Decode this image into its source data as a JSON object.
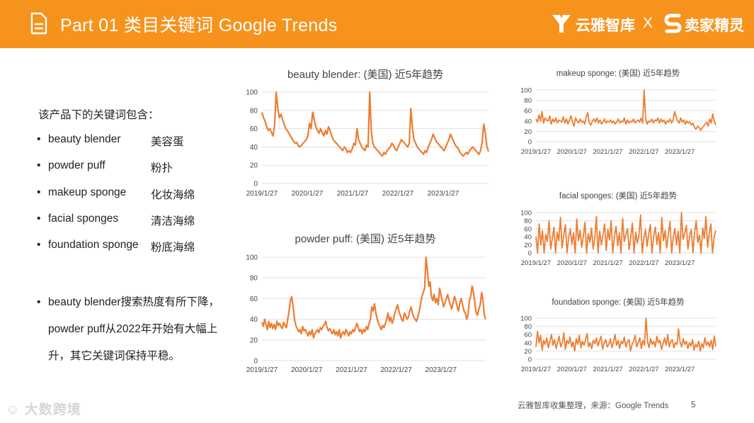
{
  "header": {
    "title": "Part 01 类目关键词 Google Trends",
    "brand1": "云雅智库",
    "separator": "X",
    "brand2": "卖家精灵",
    "color": "#f6931d"
  },
  "intro": "该产品下的关键词包含：",
  "keywords": [
    {
      "en": "beauty blender",
      "zh": "美容蛋"
    },
    {
      "en": "powder puff",
      "zh": "粉扑"
    },
    {
      "en": "makeup sponge",
      "zh": "化妆海绵"
    },
    {
      "en": "facial sponges",
      "zh": "清洁海绵"
    },
    {
      "en": "foundation sponge",
      "zh": "粉底海绵"
    }
  ],
  "note": "beauty blender搜索热度有所下降，powder puff从2022年开始有大幅上升，其它关键词保持平稳。",
  "bullet": "•",
  "footer": {
    "source": "云雅智库收集整理，来源：Google Trends",
    "page": "5"
  },
  "watermark": "大数跨境",
  "line_color": "#ed7d31",
  "chart_data": [
    {
      "type": "line",
      "title": "beauty blender: (美国) 近5年趋势",
      "ylim": [
        0,
        100
      ],
      "yticks": [
        "0",
        "20",
        "40",
        "60",
        "80",
        "100"
      ],
      "xticks": [
        "2019/1/27",
        "2020/1/27",
        "2021/1/27",
        "2022/1/27",
        "2023/1/27"
      ],
      "x_range": [
        "2019/1/27",
        "2024/1/21"
      ],
      "grid": true,
      "values": [
        78,
        72,
        68,
        62,
        58,
        60,
        56,
        52,
        64,
        100,
        82,
        72,
        76,
        70,
        65,
        60,
        58,
        55,
        52,
        49,
        46,
        44,
        45,
        41,
        40,
        42,
        44,
        46,
        48,
        52,
        66,
        60,
        78,
        70,
        62,
        58,
        55,
        60,
        56,
        52,
        58,
        54,
        62,
        58,
        52,
        48,
        46,
        44,
        42,
        40,
        38,
        36,
        40,
        38,
        34,
        36,
        34,
        38,
        44,
        42,
        60,
        48,
        44,
        40,
        38,
        36,
        42,
        40,
        100,
        58,
        44,
        40,
        38,
        36,
        34,
        32,
        30,
        34,
        32,
        36,
        38,
        40,
        44,
        42,
        38,
        36,
        40,
        44,
        48,
        46,
        44,
        42,
        40,
        44,
        82,
        60,
        48,
        44,
        40,
        38,
        36,
        34,
        32,
        36,
        34,
        40,
        44,
        48,
        54,
        50,
        46,
        44,
        42,
        40,
        38,
        36,
        40,
        44,
        48,
        54,
        50,
        46,
        42,
        40,
        38,
        34,
        32,
        30,
        32,
        34,
        32,
        36,
        38,
        40,
        38,
        36,
        34,
        32,
        36,
        45,
        65,
        55,
        40,
        35
      ]
    },
    {
      "type": "line",
      "title": "powder puff: (美国) 近5年趋势",
      "ylim": [
        0,
        100
      ],
      "yticks": [
        "0",
        "20",
        "40",
        "60",
        "80",
        "100"
      ],
      "xticks": [
        "2019/1/27",
        "2020/1/27",
        "2021/1/27",
        "2022/1/27",
        "2023/1/27"
      ],
      "x_range": [
        "2019/1/27",
        "2024/1/21"
      ],
      "grid": true,
      "values": [
        37,
        33,
        40,
        35,
        30,
        38,
        32,
        36,
        31,
        35,
        30,
        38,
        34,
        36,
        33,
        31,
        37,
        34,
        32,
        40,
        48,
        58,
        62,
        52,
        40,
        34,
        31,
        28,
        30,
        26,
        33,
        29,
        30,
        27,
        24,
        28,
        25,
        30,
        22,
        26,
        28,
        30,
        27,
        32,
        30,
        33,
        35,
        38,
        32,
        29,
        31,
        28,
        26,
        30,
        25,
        28,
        24,
        30,
        22,
        26,
        28,
        25,
        30,
        27,
        24,
        28,
        26,
        30,
        28,
        32,
        36,
        32,
        28,
        30,
        26,
        30,
        28,
        33,
        30,
        36,
        40,
        52,
        48,
        55,
        46,
        40,
        36,
        33,
        30,
        34,
        32,
        36,
        40,
        46,
        38,
        42,
        36,
        40,
        46,
        50,
        54,
        48,
        44,
        40,
        38,
        46,
        44,
        40,
        42,
        48,
        52,
        46,
        42,
        40,
        38,
        42,
        48,
        55,
        62,
        66,
        70,
        100,
        88,
        72,
        76,
        62,
        58,
        64,
        56,
        60,
        54,
        70,
        64,
        58,
        52,
        56,
        60,
        64,
        58,
        54,
        50,
        56,
        62,
        58,
        52,
        48,
        56,
        60,
        54,
        48,
        46,
        40,
        44,
        58,
        62,
        72,
        66,
        56,
        46,
        44,
        50,
        54,
        66,
        58,
        44,
        40
      ]
    },
    {
      "type": "line",
      "title": "makeup sponge: (美国) 近5年趋势",
      "ylim": [
        0,
        100
      ],
      "yticks": [
        "0",
        "20",
        "40",
        "60",
        "80",
        "100"
      ],
      "xticks": [
        "2019/1/27",
        "2020/1/27",
        "2021/1/27",
        "2022/1/27",
        "2023/1/27"
      ],
      "x_range": [
        "2019/1/27",
        "2024/1/21"
      ],
      "grid": true,
      "values": [
        44,
        38,
        52,
        40,
        58,
        36,
        46,
        42,
        40,
        50,
        34,
        44,
        38,
        46,
        36,
        42,
        40,
        38,
        48,
        36,
        44,
        34,
        42,
        50,
        38,
        30,
        46,
        40,
        36,
        44,
        38,
        40,
        34,
        48,
        56,
        36,
        32,
        40,
        44,
        38,
        46,
        36,
        42,
        34,
        38,
        44,
        36,
        40,
        38,
        42,
        36,
        40,
        34,
        38,
        44,
        36,
        40,
        38,
        46,
        34,
        42,
        36,
        40,
        38,
        44,
        36,
        40,
        42,
        38,
        46,
        36,
        100,
        44,
        34,
        40,
        38,
        44,
        36,
        42,
        40,
        46,
        36,
        44,
        38,
        42,
        34,
        40,
        38,
        44,
        36,
        42,
        58,
        48,
        40,
        36,
        46,
        38,
        42,
        34,
        40,
        36,
        38,
        32,
        36,
        28,
        24,
        30,
        28,
        22,
        26,
        30,
        34,
        38,
        30,
        44,
        36,
        54,
        40,
        32
      ]
    },
    {
      "type": "line",
      "title": "facial sponges: (美国) 近5年趋势",
      "ylim": [
        0,
        100
      ],
      "yticks": [
        "0",
        "20",
        "40",
        "60",
        "80",
        "100"
      ],
      "xticks": [
        "2019/1/27",
        "2020/1/27",
        "2021/1/27",
        "2022/1/27",
        "2023/1/27"
      ],
      "x_range": [
        "2019/1/27",
        "2024/1/21"
      ],
      "grid": true,
      "values": [
        40,
        0,
        72,
        20,
        55,
        0,
        46,
        28,
        80,
        10,
        36,
        64,
        0,
        52,
        30,
        88,
        12,
        44,
        70,
        0,
        38,
        60,
        22,
        50,
        0,
        84,
        30,
        56,
        14,
        42,
        76,
        0,
        48,
        26,
        62,
        10,
        36,
        90,
        0,
        54,
        20,
        44,
        72,
        6,
        58,
        32,
        80,
        0,
        40,
        66,
        18,
        50,
        0,
        86,
        28,
        46,
        60,
        8,
        38,
        74,
        0,
        52,
        24,
        44,
        94,
        0,
        36,
        58,
        16,
        48,
        70,
        0,
        42,
        64,
        22,
        50,
        0,
        88,
        30,
        56,
        12,
        46,
        78,
        0,
        40,
        60,
        20,
        54,
        0,
        100,
        34,
        48,
        68,
        10,
        42,
        58,
        0,
        50,
        80,
        26,
        44,
        0,
        62,
        36,
        90,
        14,
        48,
        72,
        0,
        40,
        56
      ]
    },
    {
      "type": "line",
      "title": "foundation sponge: (美国) 近5年趋势",
      "ylim": [
        0,
        100
      ],
      "yticks": [
        "0",
        "20",
        "40",
        "60",
        "80",
        "100"
      ],
      "xticks": [
        "2019/1/27",
        "2020/1/27",
        "2021/1/27",
        "2022/1/27",
        "2023/1/27"
      ],
      "x_range": [
        "2019/1/27",
        "2024/1/21"
      ],
      "grid": true,
      "values": [
        30,
        68,
        40,
        58,
        22,
        46,
        36,
        52,
        28,
        44,
        60,
        34,
        48,
        26,
        42,
        56,
        30,
        40,
        64,
        24,
        46,
        38,
        54,
        30,
        42,
        20,
        50,
        36,
        58,
        28,
        44,
        34,
        48,
        62,
        30,
        40,
        26,
        46,
        38,
        52,
        32,
        44,
        56,
        24,
        40,
        48,
        30,
        36,
        50,
        28,
        42,
        60,
        34,
        46,
        26,
        44,
        38,
        54,
        30,
        42,
        48,
        20,
        36,
        44,
        58,
        30,
        40,
        52,
        26,
        46,
        34,
        100,
        42,
        28,
        50,
        36,
        44,
        30,
        56,
        40,
        46,
        24,
        38,
        52,
        34,
        60,
        30,
        44,
        48,
        28,
        40,
        36,
        74,
        42,
        30,
        50,
        36,
        44,
        26,
        40,
        32,
        48,
        22,
        36,
        30,
        44,
        20,
        38,
        28,
        52,
        34,
        42,
        30,
        46,
        24,
        56,
        32
      ]
    }
  ]
}
